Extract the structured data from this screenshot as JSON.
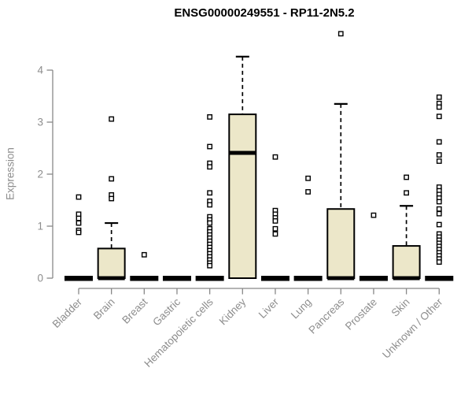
{
  "chart_data": {
    "type": "boxplot",
    "title": "ENSG00000249551 - RP11-2N5.2",
    "ylabel": "Expression",
    "ylim": [
      0,
      4.75
    ],
    "yticks": [
      0,
      1,
      2,
      3,
      4
    ],
    "grid": false,
    "legend": "none",
    "box_fill": "#ece7c9",
    "box_stroke": "#000000",
    "axis_color": "#888888",
    "label_color": "#8d8d8d",
    "categories": [
      "Bladder",
      "Brain",
      "Breast",
      "Gastric",
      "Hematopoietic cells",
      "Kidney",
      "Liver",
      "Lung",
      "Pancreas",
      "Prostate",
      "Skin",
      "Unknown / Other"
    ],
    "series": [
      {
        "category": "Bladder",
        "q1": 0,
        "median": 0,
        "q3": 0,
        "whisker_high": 0,
        "outliers": [
          1.56,
          1.23,
          1.15,
          1.06,
          0.92,
          0.88
        ]
      },
      {
        "category": "Brain",
        "q1": 0,
        "median": 0,
        "q3": 0.57,
        "whisker_high": 1.06,
        "outliers": [
          3.06,
          1.91,
          1.6,
          1.53
        ]
      },
      {
        "category": "Breast",
        "q1": 0,
        "median": 0,
        "q3": 0,
        "whisker_high": 0,
        "outliers": [
          0.45
        ]
      },
      {
        "category": "Gastric",
        "q1": 0,
        "median": 0,
        "q3": 0,
        "whisker_high": 0,
        "outliers": []
      },
      {
        "category": "Hematopoietic cells",
        "q1": 0,
        "median": 0,
        "q3": 0,
        "whisker_high": 0,
        "outliers": [
          3.1,
          2.53,
          2.21,
          2.14,
          1.64,
          1.48,
          1.41,
          1.18,
          1.12,
          1.06,
          0.95,
          0.89,
          0.83,
          0.77,
          0.71,
          0.65,
          0.59,
          0.53,
          0.47,
          0.41,
          0.35,
          0.29,
          0.24
        ]
      },
      {
        "category": "Kidney",
        "q1": 0,
        "median": 2.41,
        "q3": 3.15,
        "whisker_high": 4.26,
        "outliers": []
      },
      {
        "category": "Liver",
        "q1": 0,
        "median": 0,
        "q3": 0,
        "whisker_high": 0,
        "outliers": [
          2.33,
          1.3,
          1.23,
          1.16,
          1.1,
          0.95,
          0.85
        ]
      },
      {
        "category": "Lung",
        "q1": 0,
        "median": 0,
        "q3": 0,
        "whisker_high": 0,
        "outliers": [
          1.92,
          1.66
        ]
      },
      {
        "category": "Pancreas",
        "q1": 0,
        "median": 0,
        "q3": 1.33,
        "whisker_high": 3.35,
        "outliers": [
          4.7
        ]
      },
      {
        "category": "Prostate",
        "q1": 0,
        "median": 0,
        "q3": 0,
        "whisker_high": 0,
        "outliers": [
          1.21
        ]
      },
      {
        "category": "Skin",
        "q1": 0,
        "median": 0,
        "q3": 0.62,
        "whisker_high": 1.39,
        "outliers": [
          1.94,
          1.64
        ]
      },
      {
        "category": "Unknown / Other",
        "q1": 0,
        "median": 0,
        "q3": 0,
        "whisker_high": 0,
        "outliers": [
          3.48,
          3.36,
          3.29,
          3.11,
          2.62,
          2.37,
          2.25,
          1.75,
          1.68,
          1.61,
          1.54,
          1.47,
          1.33,
          1.24,
          1.03,
          0.85,
          0.79,
          0.73,
          0.67,
          0.61,
          0.55,
          0.49,
          0.43,
          0.37,
          0.31
        ]
      }
    ]
  }
}
